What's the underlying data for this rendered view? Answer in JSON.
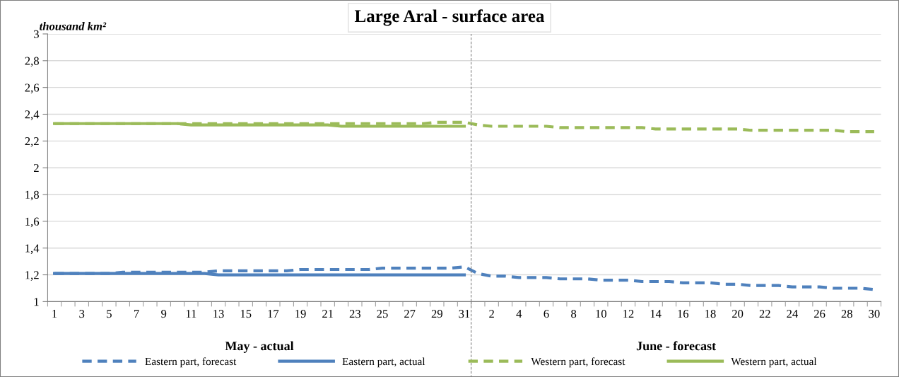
{
  "chart_data": {
    "type": "line",
    "title": "Large Aral - surface area",
    "ylabel": "thousand km²",
    "categories": [
      "1",
      null,
      "3",
      null,
      "5",
      null,
      "7",
      null,
      "9",
      null,
      "11",
      null,
      "13",
      null,
      "15",
      null,
      "17",
      null,
      "19",
      null,
      "21",
      null,
      "23",
      null,
      "25",
      null,
      "27",
      null,
      "29",
      null,
      "31",
      null,
      "2",
      null,
      "4",
      null,
      "6",
      null,
      "8",
      null,
      "10",
      null,
      "12",
      null,
      "14",
      null,
      "16",
      null,
      "18",
      null,
      "20",
      null,
      "22",
      null,
      "24",
      null,
      "26",
      null,
      "28",
      null,
      "30"
    ],
    "series": [
      {
        "name": "Eastern part, forecast",
        "color": "#4f81bd",
        "line_style": "dashed",
        "values": [
          1.21,
          1.21,
          1.21,
          1.21,
          1.21,
          1.22,
          1.22,
          1.22,
          1.22,
          1.22,
          1.22,
          1.22,
          1.23,
          1.23,
          1.23,
          1.23,
          1.23,
          1.23,
          1.24,
          1.24,
          1.24,
          1.24,
          1.24,
          1.24,
          1.25,
          1.25,
          1.25,
          1.25,
          1.25,
          1.25,
          1.26,
          1.21,
          1.19,
          1.19,
          1.18,
          1.18,
          1.18,
          1.17,
          1.17,
          1.17,
          1.16,
          1.16,
          1.16,
          1.15,
          1.15,
          1.15,
          1.14,
          1.14,
          1.14,
          1.13,
          1.13,
          1.12,
          1.12,
          1.12,
          1.11,
          1.11,
          1.11,
          1.1,
          1.1,
          1.1,
          1.09
        ]
      },
      {
        "name": "Eastern part, actual",
        "color": "#4f81bd",
        "line_style": "solid",
        "values": [
          1.21,
          1.21,
          1.21,
          1.21,
          1.21,
          1.21,
          1.21,
          1.21,
          1.21,
          1.21,
          1.21,
          1.21,
          1.2,
          1.2,
          1.2,
          1.2,
          1.2,
          1.2,
          1.2,
          1.2,
          1.2,
          1.2,
          1.2,
          1.2,
          1.2,
          1.2,
          1.2,
          1.2,
          1.2,
          1.2,
          1.2,
          null,
          null,
          null,
          null,
          null,
          null,
          null,
          null,
          null,
          null,
          null,
          null,
          null,
          null,
          null,
          null,
          null,
          null,
          null,
          null,
          null,
          null,
          null,
          null,
          null,
          null,
          null,
          null,
          null,
          null
        ]
      },
      {
        "name": "Western part, forecast",
        "color": "#9bbb59",
        "line_style": "dashed",
        "values": [
          2.33,
          2.33,
          2.33,
          2.33,
          2.33,
          2.33,
          2.33,
          2.33,
          2.33,
          2.33,
          2.33,
          2.33,
          2.33,
          2.33,
          2.33,
          2.33,
          2.33,
          2.33,
          2.33,
          2.33,
          2.33,
          2.33,
          2.33,
          2.33,
          2.33,
          2.33,
          2.33,
          2.33,
          2.34,
          2.34,
          2.34,
          2.32,
          2.31,
          2.31,
          2.31,
          2.31,
          2.31,
          2.3,
          2.3,
          2.3,
          2.3,
          2.3,
          2.3,
          2.3,
          2.29,
          2.29,
          2.29,
          2.29,
          2.29,
          2.29,
          2.29,
          2.28,
          2.28,
          2.28,
          2.28,
          2.28,
          2.28,
          2.28,
          2.27,
          2.27,
          2.27
        ]
      },
      {
        "name": "Western part, actual",
        "color": "#9bbb59",
        "line_style": "solid",
        "values": [
          2.33,
          2.33,
          2.33,
          2.33,
          2.33,
          2.33,
          2.33,
          2.33,
          2.33,
          2.33,
          2.32,
          2.32,
          2.32,
          2.32,
          2.32,
          2.32,
          2.32,
          2.32,
          2.32,
          2.32,
          2.32,
          2.31,
          2.31,
          2.31,
          2.31,
          2.31,
          2.31,
          2.31,
          2.31,
          2.31,
          2.31,
          null,
          null,
          null,
          null,
          null,
          null,
          null,
          null,
          null,
          null,
          null,
          null,
          null,
          null,
          null,
          null,
          null,
          null,
          null,
          null,
          null,
          null,
          null,
          null,
          null,
          null,
          null,
          null,
          null,
          null
        ]
      }
    ],
    "ylim": [
      1,
      3
    ],
    "yticks": [
      1,
      {
        "value": 1.2,
        "label": "1,2"
      },
      {
        "value": 1.4,
        "label": "1,4"
      },
      {
        "value": 1.6,
        "label": "1,6"
      },
      {
        "value": 1.8,
        "label": "1,8"
      },
      2,
      {
        "value": 2.2,
        "label": "2,2"
      },
      {
        "value": 2.4,
        "label": "2,4"
      },
      {
        "value": 2.6,
        "label": "2,6"
      },
      {
        "value": 2.8,
        "label": "2,8"
      },
      3
    ],
    "ref_lines": [
      {
        "axis": "x",
        "value": "31",
        "color": "#7f7f7f",
        "line_style": "dashed"
      }
    ],
    "annotations": [
      "May - actual",
      "June - forecast"
    ],
    "grid": "y",
    "legend": "bottom",
    "marker": "none"
  }
}
